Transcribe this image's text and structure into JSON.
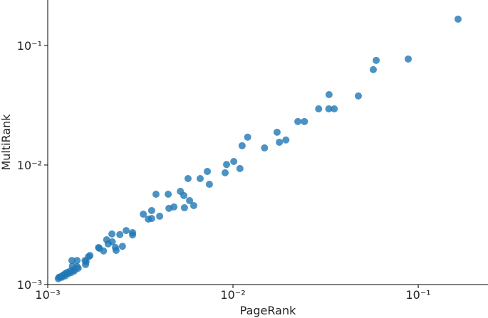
{
  "chart_data": {
    "type": "scatter",
    "xlabel": "PageRank",
    "ylabel": "MultiRank",
    "xscale": "log",
    "yscale": "log",
    "color": "#1f77b4",
    "xlim": [
      0.001,
      0.238
    ],
    "ylim": [
      0.001,
      0.24
    ],
    "xticks": [
      {
        "value": 0.001,
        "label": "10⁻³"
      },
      {
        "value": 0.01,
        "label": "10⁻²"
      },
      {
        "value": 0.1,
        "label": "10⁻¹"
      }
    ],
    "yticks": [
      {
        "value": 0.001,
        "label": "10⁻³"
      },
      {
        "value": 0.01,
        "label": "10⁻²"
      },
      {
        "value": 0.1,
        "label": "10⁻¹"
      }
    ],
    "x": [
      0.164,
      0.0883,
      0.0593,
      0.0572,
      0.0475,
      0.033,
      0.0329,
      0.0352,
      0.029,
      0.0243,
      0.0224,
      0.0173,
      0.0193,
      0.0178,
      0.012,
      0.0112,
      0.0148,
      0.0101,
      0.00923,
      0.0109,
      0.00907,
      0.00727,
      0.00665,
      0.00746,
      0.00572,
      0.00384,
      0.00447,
      0.0052,
      0.00543,
      0.00583,
      0.00614,
      0.00547,
      0.0048,
      0.00451,
      0.00402,
      0.00364,
      0.00328,
      0.00349,
      0.00364,
      0.00265,
      0.00287,
      0.00287,
      0.00222,
      0.00245,
      0.00208,
      0.00223,
      0.00212,
      0.00232,
      0.00253,
      0.00234,
      0.002,
      0.00188,
      0.0019,
      0.00169,
      0.00166,
      0.00161,
      0.00159,
      0.0016,
      0.00144,
      0.00135,
      0.00136,
      0.00144,
      0.00138,
      0.00146,
      0.00132,
      0.00127,
      0.00124,
      0.00121,
      0.00117,
      0.00115,
      0.00114,
      0.00119,
      0.00124,
      0.00129,
      0.00139,
      0.00134
    ],
    "values": [
      0.166,
      0.077,
      0.075,
      0.0628,
      0.0378,
      0.0388,
      0.0295,
      0.0295,
      0.0295,
      0.0231,
      0.0231,
      0.0188,
      0.0162,
      0.0155,
      0.0171,
      0.0145,
      0.0139,
      0.0107,
      0.0101,
      0.00934,
      0.00861,
      0.00884,
      0.0077,
      0.0069,
      0.0077,
      0.0057,
      0.0057,
      0.00602,
      0.00555,
      0.00504,
      0.00458,
      0.00439,
      0.00446,
      0.00434,
      0.00373,
      0.00416,
      0.00388,
      0.00353,
      0.00357,
      0.00283,
      0.00272,
      0.0026,
      0.00265,
      0.00262,
      0.00237,
      0.00228,
      0.00219,
      0.00204,
      0.00209,
      0.00193,
      0.00191,
      0.00204,
      0.00201,
      0.00175,
      0.00171,
      0.00155,
      0.00159,
      0.00147,
      0.00159,
      0.00159,
      0.00143,
      0.00141,
      0.00133,
      0.00137,
      0.0013,
      0.00126,
      0.00123,
      0.0012,
      0.00116,
      0.00115,
      0.00112,
      0.00115,
      0.00118,
      0.00123,
      0.0013,
      0.00126
    ]
  }
}
